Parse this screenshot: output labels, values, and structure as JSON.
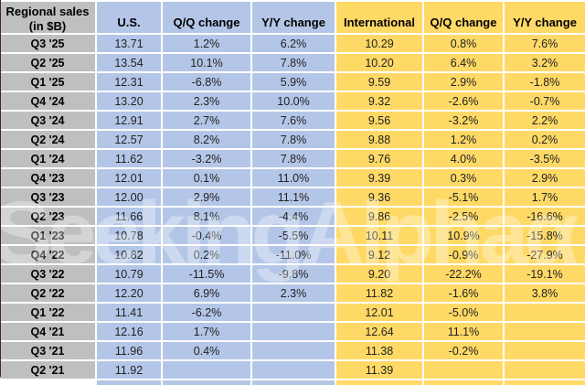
{
  "chart_data": {
    "type": "table",
    "title": "Regional sales (in $B)",
    "corner": {
      "line1": "Regional sales",
      "line2": "(in $B)"
    },
    "columns": [
      "U.S.",
      "Q/Q change",
      "Y/Y change",
      "International",
      "Q/Q change",
      "Y/Y change"
    ],
    "rows": [
      {
        "quarter": "Q3 '25",
        "us": "13.71",
        "us_qq": "1.2%",
        "us_yy": "6.2%",
        "intl": "10.29",
        "intl_qq": "0.8%",
        "intl_yy": "7.6%"
      },
      {
        "quarter": "Q2 '25",
        "us": "13.54",
        "us_qq": "10.1%",
        "us_yy": "7.8%",
        "intl": "10.20",
        "intl_qq": "6.4%",
        "intl_yy": "3.2%"
      },
      {
        "quarter": "Q1 '25",
        "us": "12.31",
        "us_qq": "-6.8%",
        "us_yy": "5.9%",
        "intl": "9.59",
        "intl_qq": "2.9%",
        "intl_yy": "-1.8%"
      },
      {
        "quarter": "Q4 '24",
        "us": "13.20",
        "us_qq": "2.3%",
        "us_yy": "10.0%",
        "intl": "9.32",
        "intl_qq": "-2.6%",
        "intl_yy": "-0.7%"
      },
      {
        "quarter": "Q3 '24",
        "us": "12.91",
        "us_qq": "2.7%",
        "us_yy": "7.6%",
        "intl": "9.56",
        "intl_qq": "-3.2%",
        "intl_yy": "2.2%"
      },
      {
        "quarter": "Q2 '24",
        "us": "12.57",
        "us_qq": "8.2%",
        "us_yy": "7.8%",
        "intl": "9.88",
        "intl_qq": "1.2%",
        "intl_yy": "0.2%"
      },
      {
        "quarter": "Q1 '24",
        "us": "11.62",
        "us_qq": "-3.2%",
        "us_yy": "7.8%",
        "intl": "9.76",
        "intl_qq": "4.0%",
        "intl_yy": "-3.5%"
      },
      {
        "quarter": "Q4 '23",
        "us": "12.01",
        "us_qq": "0.1%",
        "us_yy": "11.0%",
        "intl": "9.39",
        "intl_qq": "0.3%",
        "intl_yy": "2.9%"
      },
      {
        "quarter": "Q3 '23",
        "us": "12.00",
        "us_qq": "2.9%",
        "us_yy": "11.1%",
        "intl": "9.36",
        "intl_qq": "-5.1%",
        "intl_yy": "1.7%"
      },
      {
        "quarter": "Q2 '23",
        "us": "11.66",
        "us_qq": "8.1%",
        "us_yy": "-4.4%",
        "intl": "9.86",
        "intl_qq": "-2.5%",
        "intl_yy": "-16.6%"
      },
      {
        "quarter": "Q1 '23",
        "us": "10.78",
        "us_qq": "-0.4%",
        "us_yy": "-5.5%",
        "intl": "10.11",
        "intl_qq": "10.9%",
        "intl_yy": "-15.8%"
      },
      {
        "quarter": "Q4 '22",
        "us": "10.82",
        "us_qq": "0.2%",
        "us_yy": "-11.0%",
        "intl": "9.12",
        "intl_qq": "-0.9%",
        "intl_yy": "-27.9%"
      },
      {
        "quarter": "Q3 '22",
        "us": "10.79",
        "us_qq": "-11.5%",
        "us_yy": "-9.8%",
        "intl": "9.20",
        "intl_qq": "-22.2%",
        "intl_yy": "-19.1%"
      },
      {
        "quarter": "Q2 '22",
        "us": "12.20",
        "us_qq": "6.9%",
        "us_yy": "2.3%",
        "intl": "11.82",
        "intl_qq": "-1.6%",
        "intl_yy": "3.8%"
      },
      {
        "quarter": "Q1 '22",
        "us": "11.41",
        "us_qq": "-6.2%",
        "us_yy": "",
        "intl": "12.01",
        "intl_qq": "-5.0%",
        "intl_yy": ""
      },
      {
        "quarter": "Q4 '21",
        "us": "12.16",
        "us_qq": "1.7%",
        "us_yy": "",
        "intl": "12.64",
        "intl_qq": "11.1%",
        "intl_yy": ""
      },
      {
        "quarter": "Q3 '21",
        "us": "11.96",
        "us_qq": "0.4%",
        "us_yy": "",
        "intl": "11.38",
        "intl_qq": "-0.2%",
        "intl_yy": ""
      },
      {
        "quarter": "Q2 '21",
        "us": "11.92",
        "us_qq": "",
        "us_yy": "",
        "intl": "11.39",
        "intl_qq": "",
        "intl_yy": ""
      }
    ]
  },
  "watermark": "SeekingAlphaα",
  "colors": {
    "label_gray": "#bfbfbf",
    "us_blue": "#b4c6e7",
    "intl_yellow": "#ffd966",
    "grid_white": "#ffffff",
    "text": "#212121"
  }
}
